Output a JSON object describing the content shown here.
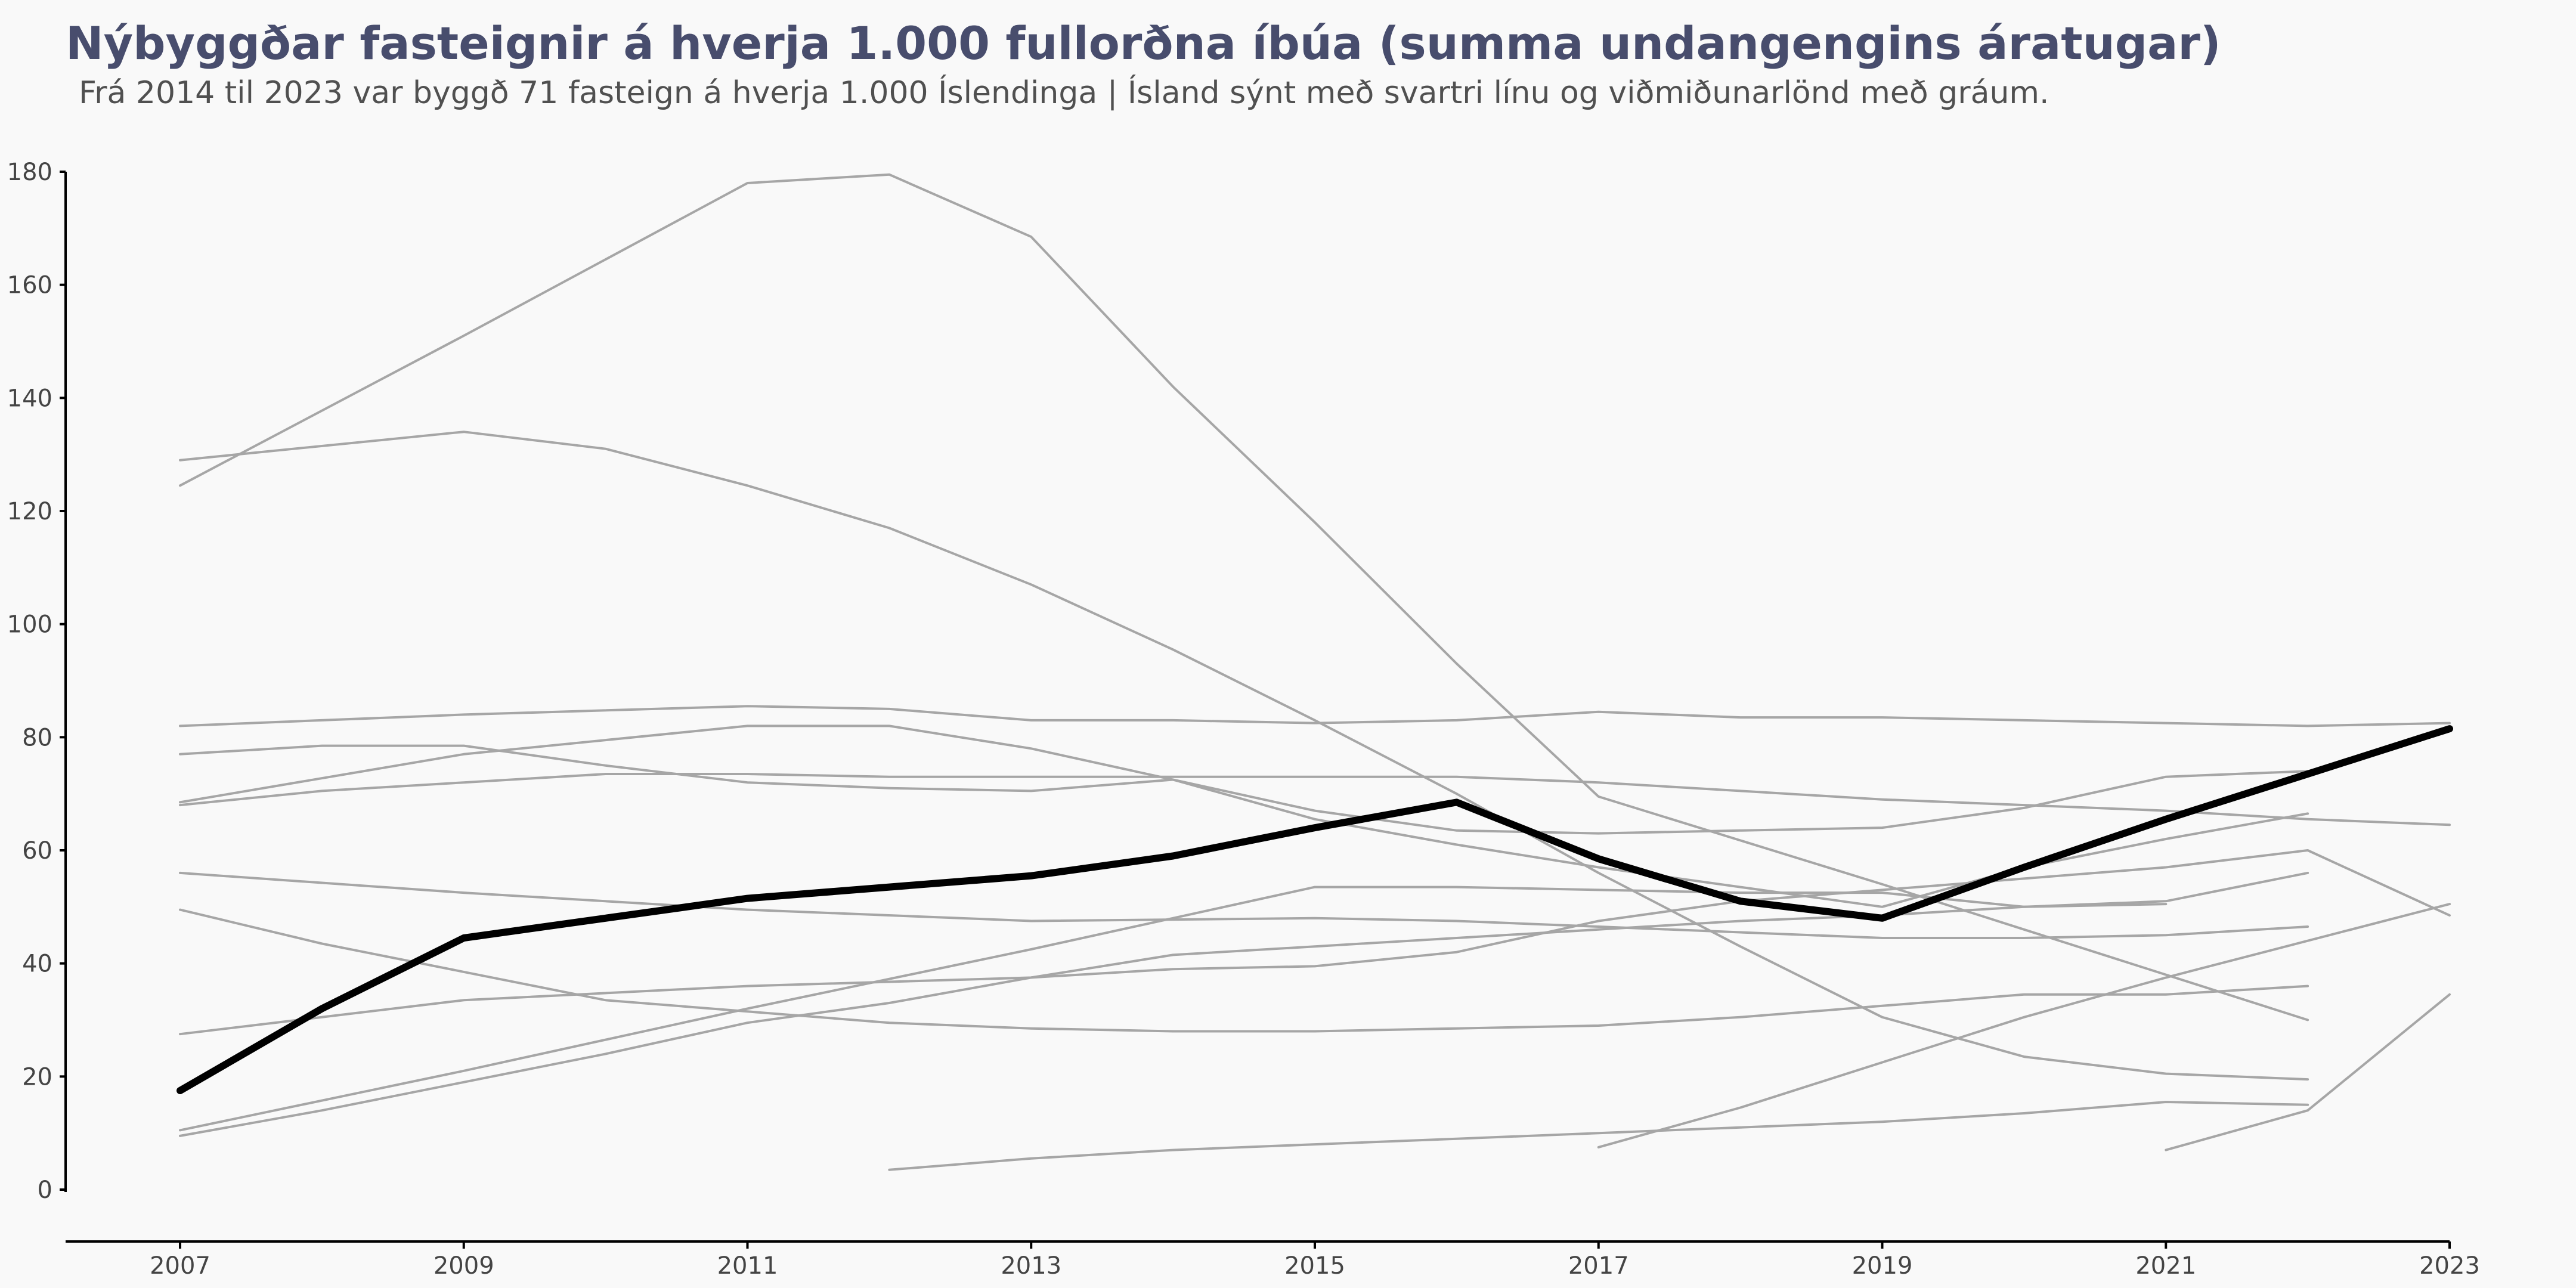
{
  "title": "Nýbyggðar fasteignir á hverja 1.000 fullorðna íbúa (summa undangengins áratugar)",
  "subtitle": "Frá 2014 til 2023 var byggð 71 fasteign á hverja 1.000 Íslendinga | Ísland sýnt með svartri línu og viðmiðunarlönd með gráum.",
  "colors": {
    "title": "#484d6d",
    "highlight": "#000000",
    "comparison": "#a6a6a6",
    "background": "#f9f9f9"
  },
  "chart_data": {
    "type": "line",
    "title": "Nýbyggðar fasteignir á hverja 1.000 fullorðna íbúa (summa undangengins áratugar)",
    "xlabel": "",
    "ylabel": "",
    "xlim": [
      2007,
      2023
    ],
    "ylim": [
      0,
      180
    ],
    "x_ticks": [
      "2007",
      "2009",
      "2011",
      "2013",
      "2015",
      "2017",
      "2019",
      "2021",
      "2023"
    ],
    "y_ticks": [
      "0",
      "20",
      "40",
      "60",
      "80",
      "100",
      "120",
      "140",
      "160",
      "180"
    ],
    "grid": false,
    "legend": "none",
    "highlight": {
      "x": [
        2007,
        2008,
        2009,
        2010,
        2011,
        2012,
        2013,
        2014,
        2015,
        2016,
        2017,
        2018,
        2019,
        2020,
        2021,
        2022,
        2023
      ],
      "y": [
        17.5,
        32,
        44.5,
        48,
        51.5,
        53.5,
        55.5,
        59,
        64,
        68.5,
        58.5,
        51,
        48,
        57,
        65.5,
        73.5,
        81.5
      ]
    },
    "series": [
      {
        "x": [
          2007,
          2009,
          2011,
          2012,
          2013,
          2014,
          2015,
          2016,
          2017,
          2019,
          2020,
          2021,
          2022
        ],
        "y": [
          124.5,
          151,
          178,
          179.5,
          168.5,
          142,
          118,
          93,
          69.5,
          54,
          46,
          38,
          30
        ]
      },
      {
        "x": [
          2007,
          2009,
          2010,
          2011,
          2012,
          2013,
          2014,
          2015,
          2016,
          2017,
          2018,
          2019,
          2020,
          2021,
          2022
        ],
        "y": [
          129,
          134,
          131,
          124.5,
          117,
          107,
          95.5,
          83,
          70,
          56,
          43,
          30.5,
          23.5,
          20.5,
          19.5
        ]
      },
      {
        "x": [
          2007,
          2009,
          2011,
          2012,
          2013,
          2014,
          2015,
          2016,
          2017,
          2018,
          2019,
          2020,
          2021,
          2022,
          2023
        ],
        "y": [
          82,
          84,
          85.5,
          85,
          83,
          83,
          82.5,
          83,
          84.5,
          83.5,
          83.5,
          83,
          82.5,
          82,
          82.5
        ]
      },
      {
        "x": [
          2007,
          2008,
          2009,
          2010,
          2011,
          2012,
          2013,
          2014,
          2015,
          2016,
          2017,
          2018,
          2019,
          2020,
          2021,
          2022,
          2023
        ],
        "y": [
          68,
          70.5,
          72,
          73.5,
          73.5,
          73,
          73,
          73,
          73,
          73,
          72,
          70.5,
          69,
          68,
          67,
          65.5,
          64.5
        ]
      },
      {
        "x": [
          2007,
          2008,
          2009,
          2010,
          2011,
          2012,
          2013,
          2014,
          2015,
          2016,
          2017,
          2018,
          2019,
          2020,
          2021,
          2022
        ],
        "y": [
          77,
          78.5,
          78.5,
          75,
          72,
          71,
          70.5,
          72.5,
          67,
          63.5,
          63,
          63.5,
          64,
          67.5,
          73,
          74
        ]
      },
      {
        "x": [
          2007,
          2009,
          2011,
          2012,
          2013,
          2014,
          2015,
          2016,
          2017,
          2018,
          2019,
          2020,
          2021,
          2022
        ],
        "y": [
          68.5,
          77,
          82,
          82,
          78,
          72.5,
          65.5,
          61,
          57,
          53.5,
          50,
          57,
          62,
          66.5
        ]
      },
      {
        "x": [
          2007,
          2009,
          2011,
          2013,
          2015,
          2016,
          2017,
          2018,
          2019,
          2020,
          2021,
          2022
        ],
        "y": [
          56,
          52.5,
          49.5,
          47.5,
          48,
          47.5,
          46.5,
          45.5,
          44.5,
          44.5,
          45,
          46.5
        ]
      },
      {
        "x": [
          2007,
          2008,
          2009,
          2010,
          2011,
          2012,
          2013,
          2014,
          2015,
          2016,
          2017,
          2018,
          2019,
          2020,
          2021,
          2022
        ],
        "y": [
          49.5,
          43.5,
          38.5,
          33.5,
          31.5,
          29.5,
          28.5,
          28,
          28,
          28.5,
          29,
          30.5,
          32.5,
          34.5,
          34.5,
          36
        ]
      },
      {
        "x": [
          2007,
          2009,
          2011,
          2013,
          2014,
          2015,
          2016,
          2017,
          2018,
          2019,
          2020,
          2021,
          2022,
          2023
        ],
        "y": [
          27.5,
          33.5,
          36,
          37.5,
          39,
          39.5,
          42,
          47.5,
          51,
          53,
          55,
          57,
          60,
          48.5
        ]
      },
      {
        "x": [
          2007,
          2009,
          2011,
          2013,
          2015,
          2016,
          2017,
          2018,
          2019,
          2020,
          2021
        ],
        "y": [
          10.5,
          21,
          32,
          42.5,
          53.5,
          53.5,
          53,
          52.5,
          52.5,
          50,
          50.5
        ]
      },
      {
        "x": [
          2007,
          2008,
          2009,
          2010,
          2011,
          2012,
          2013,
          2014,
          2015,
          2016,
          2017,
          2018,
          2019,
          2020,
          2021,
          2022
        ],
        "y": [
          9.5,
          14,
          19,
          24,
          29.5,
          33,
          37.5,
          41.5,
          43,
          44.5,
          46,
          47.5,
          48.5,
          50,
          51,
          56
        ]
      },
      {
        "x": [
          2012,
          2013,
          2014,
          2015,
          2016,
          2017,
          2018,
          2019,
          2020,
          2021,
          2022
        ],
        "y": [
          3.5,
          5.5,
          7,
          8,
          9,
          10,
          11,
          12,
          13.5,
          15.5,
          15
        ]
      },
      {
        "x": [
          2017,
          2018,
          2019,
          2020,
          2021,
          2022,
          2023
        ],
        "y": [
          7.5,
          14.5,
          22.5,
          30.5,
          37.5,
          44,
          50.5
        ]
      },
      {
        "x": [
          2021,
          2022,
          2023
        ],
        "y": [
          7,
          14,
          34.5
        ]
      }
    ]
  }
}
